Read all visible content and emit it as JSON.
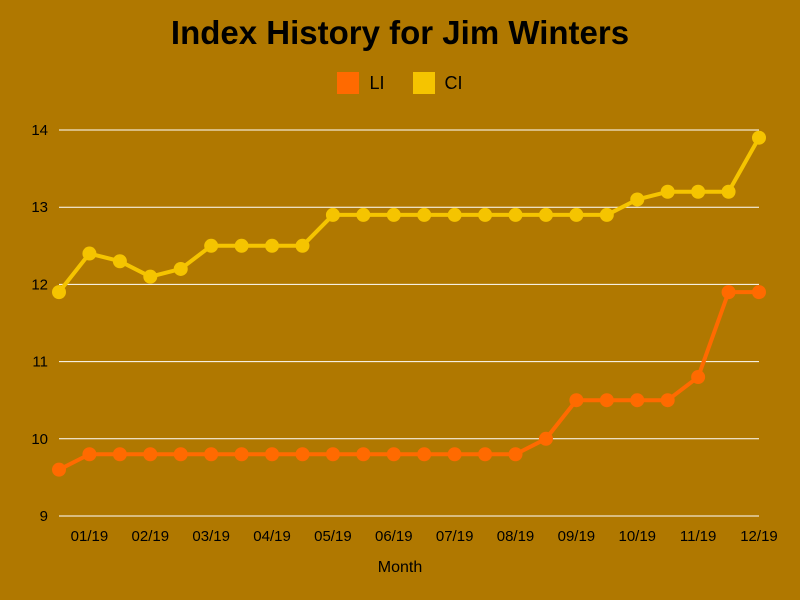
{
  "chart_data": {
    "type": "line",
    "title": "Index History for Jim Winters",
    "xlabel": "Month",
    "ylabel": "",
    "ylim": [
      9,
      14
    ],
    "yticks": [
      9,
      10,
      11,
      12,
      13,
      14
    ],
    "grid": true,
    "legend_position": "top-center",
    "x_tick_labels": [
      "01/19",
      "02/19",
      "03/19",
      "04/19",
      "05/19",
      "06/19",
      "07/19",
      "08/19",
      "09/19",
      "10/19",
      "11/19",
      "12/19"
    ],
    "series": [
      {
        "name": "LI",
        "color": "#ff6a00",
        "values": [
          9.6,
          9.8,
          9.8,
          9.8,
          9.8,
          9.8,
          9.8,
          9.8,
          9.8,
          9.8,
          9.8,
          9.8,
          9.8,
          9.8,
          9.8,
          9.8,
          10.0,
          10.5,
          10.5,
          10.5,
          10.5,
          10.8,
          11.9,
          11.9
        ]
      },
      {
        "name": "CI",
        "color": "#f5c400",
        "values": [
          11.9,
          12.4,
          12.3,
          12.1,
          12.2,
          12.5,
          12.5,
          12.5,
          12.5,
          12.9,
          12.9,
          12.9,
          12.9,
          12.9,
          12.9,
          12.9,
          12.9,
          12.9,
          12.9,
          13.1,
          13.2,
          13.2,
          13.2,
          13.9
        ]
      }
    ]
  }
}
